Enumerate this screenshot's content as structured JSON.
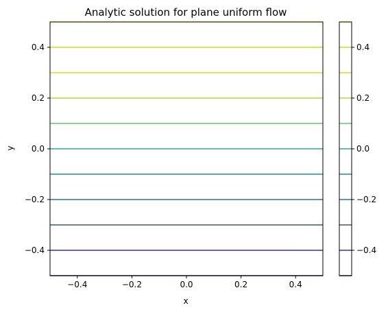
{
  "chart_data": {
    "type": "contour",
    "title": "Analytic solution for plane uniform flow",
    "xlabel": "x",
    "ylabel": "y",
    "xlim": [
      -0.5,
      0.5
    ],
    "ylim": [
      -0.5,
      0.5
    ],
    "xticks": [
      -0.4,
      -0.2,
      0.0,
      0.2,
      0.4
    ],
    "yticks": [
      -0.4,
      -0.2,
      0.0,
      0.2,
      0.4
    ],
    "xtick_labels": [
      "−0.4",
      "−0.2",
      "0.0",
      "0.2",
      "0.4"
    ],
    "ytick_labels": [
      "−0.4",
      "−0.2",
      "0.0",
      "0.2",
      "0.4"
    ],
    "grid": false,
    "contour_levels": [
      {
        "y": -0.5,
        "color": "#440154"
      },
      {
        "y": -0.4,
        "color": "#472d7b"
      },
      {
        "y": -0.3,
        "color": "#3b528b"
      },
      {
        "y": -0.2,
        "color": "#2c728e"
      },
      {
        "y": -0.1,
        "color": "#21918c"
      },
      {
        "y": 0.0,
        "color": "#28ae80"
      },
      {
        "y": 0.1,
        "color": "#5ec962"
      },
      {
        "y": 0.2,
        "color": "#addc30"
      },
      {
        "y": 0.3,
        "color": "#d5e21a"
      },
      {
        "y": 0.4,
        "color": "#c8e020"
      },
      {
        "y": 0.5,
        "color": "#fde725"
      }
    ],
    "colorbar": {
      "ticks": [
        -0.4,
        -0.2,
        0.0,
        0.2,
        0.4
      ],
      "tick_labels": [
        "−0.4",
        "−0.2",
        "0.0",
        "0.2",
        "0.4"
      ],
      "range": [
        -0.5,
        0.5
      ]
    }
  }
}
